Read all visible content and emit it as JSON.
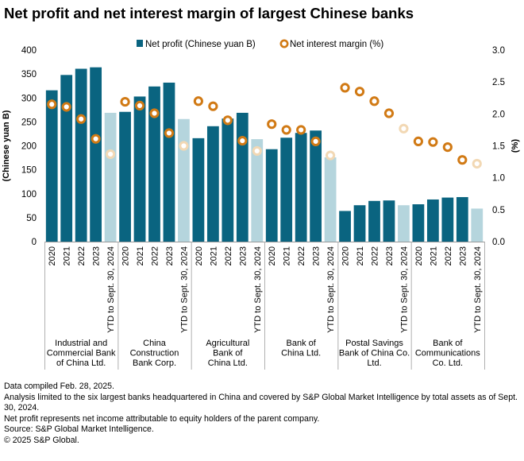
{
  "title": "Net profit and net interest margin of largest Chinese banks",
  "chart_data": {
    "type": "bar",
    "title": "Net profit and net interest margin of largest Chinese banks",
    "ylabel": "(Chinese yuan B)",
    "y2label": "(%)",
    "ylim": [
      0,
      400
    ],
    "y2lim": [
      0,
      3.0
    ],
    "yticks": [
      "0",
      "50",
      "100",
      "150",
      "200",
      "250",
      "300",
      "350",
      "400"
    ],
    "y2ticks": [
      "0.0",
      "0.5",
      "1.0",
      "1.5",
      "2.0",
      "2.5",
      "3.0"
    ],
    "legend": {
      "placement": "top",
      "bar_label": "Net profit (Chinese yuan B)",
      "dot_label": "Net interest margin (%)"
    },
    "periods": [
      "2020",
      "2021",
      "2022",
      "2023",
      "YTD to Sept. 30, 2024"
    ],
    "colors": {
      "bar": "#0a6480",
      "bar_ytd": "#b5d5dd",
      "dot": "#d17a15",
      "dot_ytd": "#f2d8b4"
    },
    "groups": [
      {
        "label": "Industrial and Commercial Bank of China Ltd.",
        "label_lines": [
          "Industrial and",
          "Commercial Bank",
          "of China Ltd."
        ],
        "net_profit": [
          316,
          348,
          361,
          364,
          269
        ],
        "nim": [
          2.15,
          2.11,
          1.92,
          1.61,
          1.37
        ]
      },
      {
        "label": "China Construction Bank Corp.",
        "label_lines": [
          "China",
          "Construction",
          "Bank Corp."
        ],
        "net_profit": [
          271,
          303,
          324,
          332,
          256
        ],
        "nim": [
          2.19,
          2.13,
          2.01,
          1.7,
          1.5
        ]
      },
      {
        "label": "Agricultural Bank of China Ltd.",
        "label_lines": [
          "Agricultural",
          "Bank of",
          "China Ltd."
        ],
        "net_profit": [
          216,
          241,
          257,
          269,
          214
        ],
        "nim": [
          2.2,
          2.12,
          1.9,
          1.58,
          1.42
        ]
      },
      {
        "label": "Bank of China Ltd.",
        "label_lines": [
          "Bank of",
          "China Ltd."
        ],
        "net_profit": [
          193,
          217,
          227,
          232,
          176
        ],
        "nim": [
          1.84,
          1.75,
          1.75,
          1.57,
          1.35
        ]
      },
      {
        "label": "Postal Savings Bank of China Co. Ltd.",
        "label_lines": [
          "Postal Savings",
          "Bank of China Co.",
          "Ltd."
        ],
        "net_profit": [
          64,
          76,
          85,
          86,
          76
        ],
        "nim": [
          2.41,
          2.35,
          2.2,
          2.01,
          1.77
        ]
      },
      {
        "label": "Bank of Communications Co. Ltd.",
        "label_lines": [
          "Bank of",
          "Communications",
          "Co. Ltd."
        ],
        "net_profit": [
          78,
          88,
          92,
          93,
          69
        ],
        "nim": [
          1.57,
          1.56,
          1.48,
          1.28,
          1.22
        ]
      }
    ]
  },
  "notes": [
    "Data compiled Feb. 28, 2025.",
    "Analysis limited to the six largest banks headquartered in China and covered by S&P Global Market Intelligence by total assets as of Sept. 30, 2024.",
    "Net profit represents net income attributable to equity holders of the parent company.",
    "Source: S&P Global Market Intelligence.",
    "© 2025 S&P Global."
  ]
}
